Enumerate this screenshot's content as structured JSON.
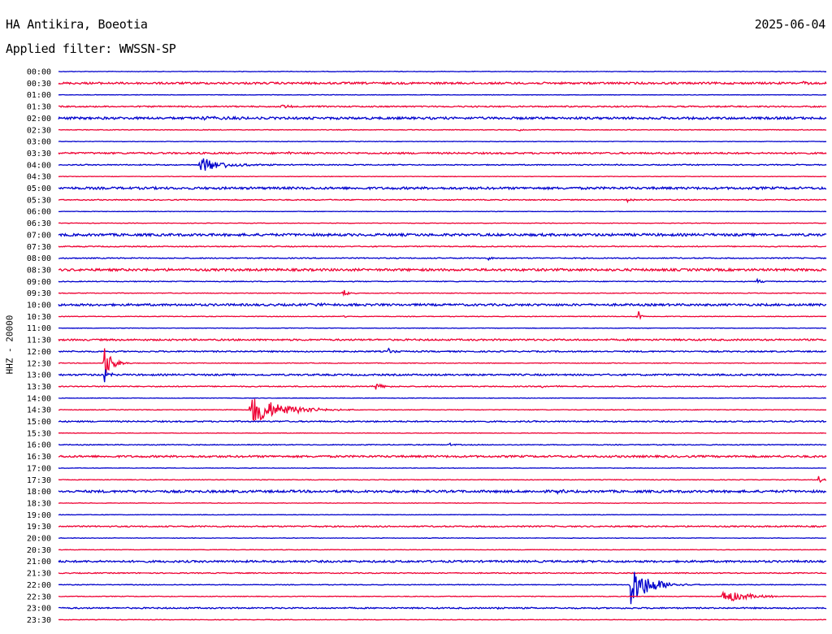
{
  "header": {
    "station": "HA Antikira, Boeotia",
    "date": "2025-06-04",
    "filter": "Applied filter: WWSSN-SP",
    "channel": "HHZ - 20000"
  },
  "chart_data": {
    "type": "line",
    "description_axis": "helicorder",
    "ylabel": "HHZ - 20000",
    "colors": {
      "even_row": "#0000cc",
      "odd_row": "#ee0033"
    },
    "grid": false,
    "rows": [
      {
        "label": "00:00",
        "noise": 0.3,
        "events": []
      },
      {
        "label": "00:30",
        "noise": 1.2,
        "events": [
          {
            "t": 0.97,
            "amp": 2,
            "dur": 0.01
          }
        ]
      },
      {
        "label": "01:00",
        "noise": 0.3,
        "events": []
      },
      {
        "label": "01:30",
        "noise": 0.8,
        "events": [
          {
            "t": 0.29,
            "amp": 3,
            "dur": 0.01
          },
          {
            "t": 0.98,
            "amp": 2,
            "dur": 0.005
          }
        ]
      },
      {
        "label": "02:00",
        "noise": 1.4,
        "events": [
          {
            "t": 0.18,
            "amp": 1.5,
            "dur": 0.05
          }
        ]
      },
      {
        "label": "02:30",
        "noise": 0.4,
        "events": [
          {
            "t": 0.6,
            "amp": 2,
            "dur": 0.005
          }
        ]
      },
      {
        "label": "03:00",
        "noise": 0.3,
        "events": []
      },
      {
        "label": "03:30",
        "noise": 1.0,
        "events": [
          {
            "t": 0.3,
            "amp": 1.5,
            "dur": 0.01
          }
        ]
      },
      {
        "label": "04:00",
        "noise": 0.6,
        "events": [
          {
            "t": 0.185,
            "amp": 10,
            "dur": 0.035
          }
        ]
      },
      {
        "label": "04:30",
        "noise": 0.3,
        "events": []
      },
      {
        "label": "05:00",
        "noise": 1.4,
        "events": []
      },
      {
        "label": "05:30",
        "noise": 0.6,
        "events": [
          {
            "t": 0.74,
            "amp": 3,
            "dur": 0.006
          }
        ]
      },
      {
        "label": "06:00",
        "noise": 0.3,
        "events": []
      },
      {
        "label": "06:30",
        "noise": 0.3,
        "events": []
      },
      {
        "label": "07:00",
        "noise": 1.5,
        "events": []
      },
      {
        "label": "07:30",
        "noise": 0.6,
        "events": []
      },
      {
        "label": "08:00",
        "noise": 0.6,
        "events": [
          {
            "t": 0.56,
            "amp": 2,
            "dur": 0.008
          }
        ]
      },
      {
        "label": "08:30",
        "noise": 1.4,
        "events": []
      },
      {
        "label": "09:00",
        "noise": 0.5,
        "events": [
          {
            "t": 0.91,
            "amp": 3,
            "dur": 0.01
          }
        ]
      },
      {
        "label": "09:30",
        "noise": 0.4,
        "events": [
          {
            "t": 0.37,
            "amp": 6,
            "dur": 0.008
          }
        ]
      },
      {
        "label": "10:00",
        "noise": 1.3,
        "events": [
          {
            "t": 0.33,
            "amp": 2,
            "dur": 0.03
          }
        ]
      },
      {
        "label": "10:30",
        "noise": 0.4,
        "events": [
          {
            "t": 0.37,
            "amp": 2,
            "dur": 0.005
          },
          {
            "t": 0.755,
            "amp": 7,
            "dur": 0.005
          }
        ]
      },
      {
        "label": "11:00",
        "noise": 0.3,
        "events": []
      },
      {
        "label": "11:30",
        "noise": 1.0,
        "events": []
      },
      {
        "label": "12:00",
        "noise": 0.8,
        "events": [
          {
            "t": 0.43,
            "amp": 4,
            "dur": 0.008
          }
        ]
      },
      {
        "label": "12:30",
        "noise": 0.4,
        "events": [
          {
            "t": 0.06,
            "amp": 20,
            "dur": 0.012
          }
        ]
      },
      {
        "label": "13:00",
        "noise": 1.0,
        "events": [
          {
            "t": 0.06,
            "amp": 10,
            "dur": 0.006
          }
        ]
      },
      {
        "label": "13:30",
        "noise": 0.6,
        "events": [
          {
            "t": 0.41,
            "amp": 6,
            "dur": 0.01
          },
          {
            "t": 0.63,
            "amp": 1.5,
            "dur": 0.02
          }
        ]
      },
      {
        "label": "14:00",
        "noise": 0.3,
        "events": []
      },
      {
        "label": "14:30",
        "noise": 0.4,
        "events": [
          {
            "t": 0.25,
            "amp": 20,
            "dur": 0.045
          }
        ]
      },
      {
        "label": "15:00",
        "noise": 0.8,
        "events": []
      },
      {
        "label": "15:30",
        "noise": 0.3,
        "events": []
      },
      {
        "label": "16:00",
        "noise": 0.5,
        "events": [
          {
            "t": 0.51,
            "amp": 2.5,
            "dur": 0.005
          }
        ]
      },
      {
        "label": "16:30",
        "noise": 1.2,
        "events": []
      },
      {
        "label": "17:00",
        "noise": 0.3,
        "events": []
      },
      {
        "label": "17:30",
        "noise": 0.4,
        "events": [
          {
            "t": 0.99,
            "amp": 5,
            "dur": 0.005
          }
        ]
      },
      {
        "label": "18:00",
        "noise": 1.4,
        "events": [
          {
            "t": 0.65,
            "amp": 2,
            "dur": 0.01
          }
        ]
      },
      {
        "label": "18:30",
        "noise": 0.3,
        "events": []
      },
      {
        "label": "19:00",
        "noise": 0.3,
        "events": []
      },
      {
        "label": "19:30",
        "noise": 0.8,
        "events": []
      },
      {
        "label": "20:00",
        "noise": 0.3,
        "events": []
      },
      {
        "label": "20:30",
        "noise": 0.3,
        "events": []
      },
      {
        "label": "21:00",
        "noise": 1.2,
        "events": []
      },
      {
        "label": "21:30",
        "noise": 0.6,
        "events": []
      },
      {
        "label": "22:00",
        "noise": 0.4,
        "events": [
          {
            "t": 0.745,
            "amp": 26,
            "dur": 0.03
          }
        ]
      },
      {
        "label": "22:30",
        "noise": 0.4,
        "events": [
          {
            "t": 0.865,
            "amp": 9,
            "dur": 0.035
          }
        ]
      },
      {
        "label": "23:00",
        "noise": 0.8,
        "events": [
          {
            "t": 0.57,
            "amp": 1.5,
            "dur": 0.01
          }
        ]
      },
      {
        "label": "23:30",
        "noise": 0.3,
        "events": []
      }
    ]
  }
}
